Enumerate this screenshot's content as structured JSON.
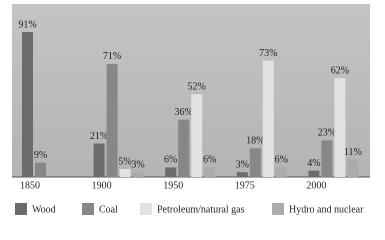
{
  "chart_data": {
    "type": "bar",
    "categories": [
      "1850",
      "1900",
      "1950",
      "1975",
      "2000"
    ],
    "series": [
      {
        "name": "Wood",
        "color": "#6b6b6b",
        "values": [
          91,
          21,
          6,
          3,
          4
        ],
        "value_labels": [
          "91%",
          "21%",
          "6%",
          "3%",
          "4%"
        ]
      },
      {
        "name": "Coal",
        "color": "#878787",
        "values": [
          9,
          71,
          36,
          18,
          23
        ],
        "value_labels": [
          "9%",
          "71%",
          "36%",
          "18%",
          "23%"
        ]
      },
      {
        "name": "Petroleum/natural gas",
        "color": "#e2e2e2",
        "values": [
          null,
          5,
          52,
          73,
          62
        ],
        "value_labels": [
          null,
          "5%",
          "52%",
          "73%",
          "62%"
        ]
      },
      {
        "name": "Hydro and nuclear",
        "color": "#ababab",
        "values": [
          null,
          3,
          6,
          6,
          11
        ],
        "value_labels": [
          null,
          "3%",
          "6%",
          "6%",
          "11%"
        ]
      }
    ]
  }
}
